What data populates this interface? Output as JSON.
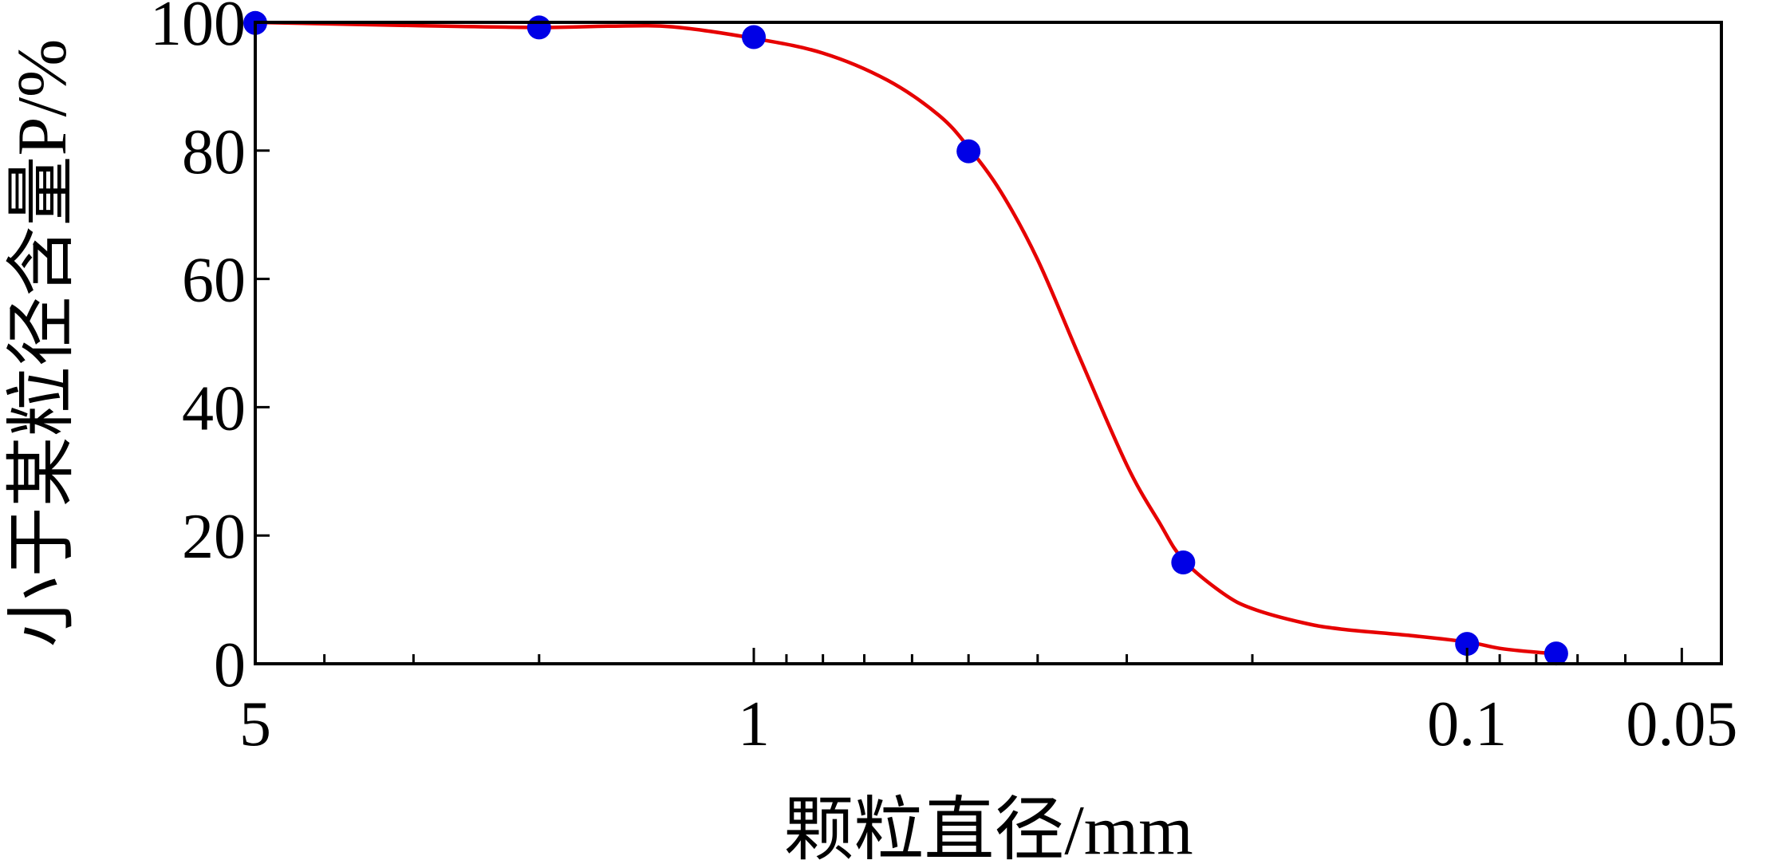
{
  "chart_data": {
    "type": "line",
    "xlabel": "颗粒直径/mm",
    "ylabel": "小于某粒径含量P/%",
    "x_scale": "log",
    "x_reversed": true,
    "xlim": [
      5,
      0.044
    ],
    "ylim": [
      0,
      100
    ],
    "x_ticks_major": [
      {
        "value": 5,
        "label": "5"
      },
      {
        "value": 1,
        "label": "1"
      },
      {
        "value": 0.1,
        "label": "0.1"
      },
      {
        "value": 0.05,
        "label": "0.05"
      }
    ],
    "x_ticks_minor": [
      4,
      3,
      2,
      0.9,
      0.8,
      0.7,
      0.6,
      0.5,
      0.4,
      0.3,
      0.2,
      0.09,
      0.08,
      0.07,
      0.06
    ],
    "y_ticks": [
      {
        "value": 0,
        "label": "0"
      },
      {
        "value": 20,
        "label": "20"
      },
      {
        "value": 40,
        "label": "40"
      },
      {
        "value": 60,
        "label": "60"
      },
      {
        "value": 80,
        "label": "80"
      },
      {
        "value": 100,
        "label": "100"
      }
    ],
    "grid": false,
    "series": [
      {
        "kind": "scatter",
        "color": "#0000e6",
        "points": [
          {
            "x": 5,
            "y": 99.9
          },
          {
            "x": 2,
            "y": 99.2
          },
          {
            "x": 1,
            "y": 97.7
          },
          {
            "x": 0.5,
            "y": 79.9
          },
          {
            "x": 0.25,
            "y": 15.8
          },
          {
            "x": 0.1,
            "y": 3.1
          },
          {
            "x": 0.075,
            "y": 1.6
          }
        ]
      },
      {
        "kind": "line",
        "color": "#e60000",
        "points": [
          {
            "x": 5,
            "y": 100
          },
          {
            "x": 3,
            "y": 99.5
          },
          {
            "x": 2,
            "y": 99.2
          },
          {
            "x": 1.6,
            "y": 99.4
          },
          {
            "x": 1.3,
            "y": 99.3
          },
          {
            "x": 1,
            "y": 97.5
          },
          {
            "x": 0.8,
            "y": 95.2
          },
          {
            "x": 0.65,
            "y": 91
          },
          {
            "x": 0.55,
            "y": 85.5
          },
          {
            "x": 0.5,
            "y": 80.5
          },
          {
            "x": 0.45,
            "y": 73.5
          },
          {
            "x": 0.4,
            "y": 63
          },
          {
            "x": 0.35,
            "y": 48
          },
          {
            "x": 0.3,
            "y": 31
          },
          {
            "x": 0.27,
            "y": 22
          },
          {
            "x": 0.25,
            "y": 16.2
          },
          {
            "x": 0.22,
            "y": 11
          },
          {
            "x": 0.2,
            "y": 8.6
          },
          {
            "x": 0.17,
            "y": 6.4
          },
          {
            "x": 0.15,
            "y": 5.4
          },
          {
            "x": 0.12,
            "y": 4.4
          },
          {
            "x": 0.1,
            "y": 3.4
          },
          {
            "x": 0.09,
            "y": 2.4
          },
          {
            "x": 0.08,
            "y": 1.8
          },
          {
            "x": 0.075,
            "y": 1.6
          }
        ]
      }
    ]
  }
}
